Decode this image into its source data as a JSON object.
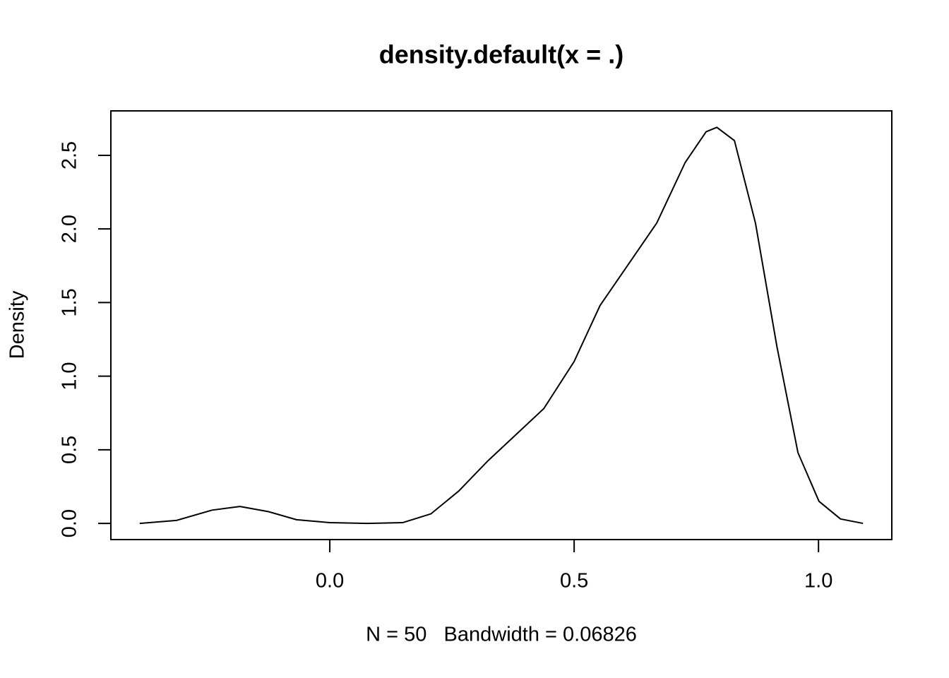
{
  "chart_data": {
    "type": "line",
    "title": "density.default(x = .)",
    "xlabel": "N = 50   Bandwidth = 0.06826",
    "ylabel": "Density",
    "x": [
      -0.389,
      -0.314,
      -0.241,
      -0.184,
      -0.126,
      -0.068,
      0.0,
      0.077,
      0.149,
      0.207,
      0.264,
      0.322,
      0.38,
      0.438,
      0.5,
      0.553,
      0.611,
      0.669,
      0.727,
      0.77,
      0.792,
      0.828,
      0.871,
      0.915,
      0.958,
      1.001,
      1.045,
      1.091
    ],
    "series": [
      {
        "color": "#000000",
        "values": [
          0.0,
          0.02,
          0.09,
          0.115,
          0.08,
          0.025,
          0.005,
          0.0,
          0.005,
          0.065,
          0.22,
          0.42,
          0.6,
          0.78,
          1.1,
          1.48,
          1.76,
          2.04,
          2.45,
          2.66,
          2.69,
          2.6,
          2.04,
          1.2,
          0.48,
          0.15,
          0.03,
          0.0
        ]
      }
    ],
    "xlim": [
      -0.448,
      1.15
    ],
    "ylim": [
      -0.11,
      2.802
    ],
    "xticks": [
      {
        "value": 0,
        "label": "0.0"
      },
      0.5,
      {
        "value": 1,
        "label": "1.0"
      }
    ],
    "yticks": [
      {
        "value": 0,
        "label": "0.0"
      },
      0.5,
      {
        "value": 1,
        "label": "1.0"
      },
      1.5,
      {
        "value": 2,
        "label": "2.0"
      },
      2.5
    ]
  }
}
